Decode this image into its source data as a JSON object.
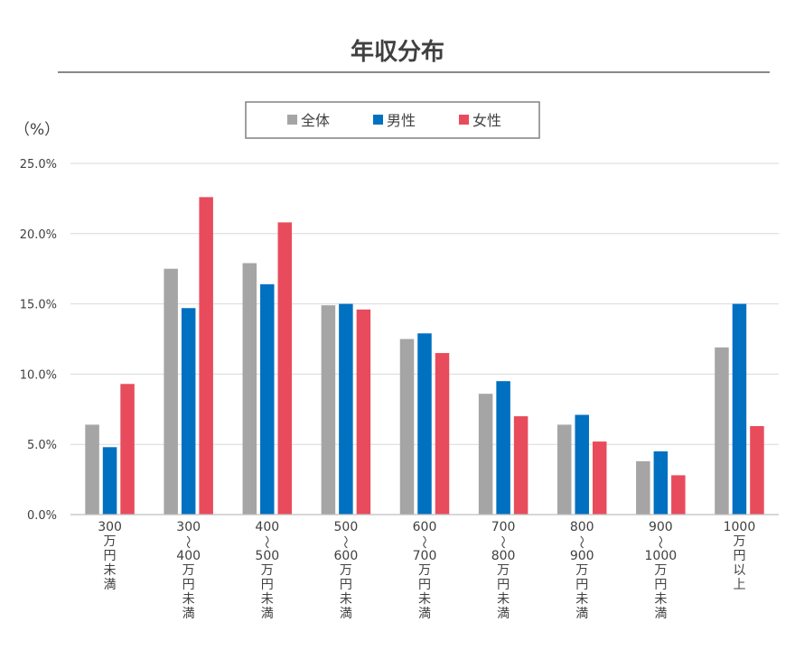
{
  "chart_data": {
    "type": "bar",
    "title": "年収分布",
    "ylabel": "（%）",
    "ylim": [
      0,
      25
    ],
    "yticks": [
      "0.0%",
      "5.0%",
      "10.0%",
      "15.0%",
      "20.0%",
      "25.0%"
    ],
    "grid": true,
    "legend_position": "top",
    "categories": [
      "300万円未満",
      "300〜400万円未満",
      "400〜500万円未満",
      "500〜600万円未満",
      "600〜700万円未満",
      "700〜800万円未満",
      "800〜900万円未満",
      "900〜1000万円未満",
      "1000万円以上"
    ],
    "category_label_lines": [
      [
        "300",
        "万",
        "円",
        "未",
        "満"
      ],
      [
        "300",
        "〜",
        "400",
        "万",
        "円",
        "未",
        "満"
      ],
      [
        "400",
        "〜",
        "500",
        "万",
        "円",
        "未",
        "満"
      ],
      [
        "500",
        "〜",
        "600",
        "万",
        "円",
        "未",
        "満"
      ],
      [
        "600",
        "〜",
        "700",
        "万",
        "円",
        "未",
        "満"
      ],
      [
        "700",
        "〜",
        "800",
        "万",
        "円",
        "未",
        "満"
      ],
      [
        "800",
        "〜",
        "900",
        "万",
        "円",
        "未",
        "満"
      ],
      [
        "900",
        "〜",
        "1000",
        "万",
        "円",
        "未",
        "満"
      ],
      [
        "1000",
        "万",
        "円",
        "以",
        "上"
      ]
    ],
    "series": [
      {
        "name": "全体",
        "color": "#a5a5a5",
        "values": [
          6.4,
          17.5,
          17.9,
          14.9,
          12.5,
          8.6,
          6.4,
          3.8,
          11.9
        ]
      },
      {
        "name": "男性",
        "color": "#0070c0",
        "values": [
          4.8,
          14.7,
          16.4,
          15.0,
          12.9,
          9.5,
          7.1,
          4.5,
          15.0
        ]
      },
      {
        "name": "女性",
        "color": "#e84c5c",
        "values": [
          9.3,
          22.6,
          20.8,
          14.6,
          11.5,
          7.0,
          5.2,
          2.8,
          6.3
        ]
      }
    ]
  }
}
